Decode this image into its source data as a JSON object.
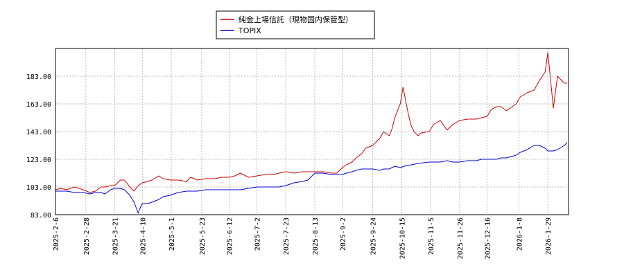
{
  "chart_data": {
    "type": "line",
    "title": "",
    "xlabel": "",
    "ylabel": "",
    "ylim": [
      83.0,
      203.0
    ],
    "yticks": [
      83.0,
      103.0,
      123.0,
      143.0,
      163.0,
      183.0
    ],
    "ytick_labels": [
      "83.00",
      "103.00",
      "123.00",
      "143.00",
      "163.00",
      "183.00"
    ],
    "xlim": [
      "2025-02-06",
      "2026-02-13"
    ],
    "xticks": [
      "2025-2-6",
      "2025-2-28",
      "2025-3-21",
      "2025-4-10",
      "2025-5-1",
      "2025-5-23",
      "2025-6-12",
      "2025-7-2",
      "2025-7-23",
      "2025-8-13",
      "2025-9-2",
      "2025-9-24",
      "2025-10-15",
      "2025-11-5",
      "2025-11-26",
      "2025-12-16",
      "2026-1-8",
      "2026-1-29"
    ],
    "grid": true,
    "legend_position": "top-center",
    "series": [
      {
        "name": "純金上場信託（現物国内保管型）",
        "color": "#cc0000",
        "x": [
          "2025-02-06",
          "2025-02-10",
          "2025-02-14",
          "2025-02-20",
          "2025-02-26",
          "2025-03-03",
          "2025-03-07",
          "2025-03-11",
          "2025-03-14",
          "2025-03-18",
          "2025-03-21",
          "2025-03-25",
          "2025-03-28",
          "2025-04-01",
          "2025-04-04",
          "2025-04-07",
          "2025-04-10",
          "2025-04-14",
          "2025-04-17",
          "2025-04-22",
          "2025-04-25",
          "2025-04-30",
          "2025-05-06",
          "2025-05-12",
          "2025-05-15",
          "2025-05-20",
          "2025-05-26",
          "2025-06-02",
          "2025-06-06",
          "2025-06-12",
          "2025-06-16",
          "2025-06-20",
          "2025-06-26",
          "2025-07-02",
          "2025-07-08",
          "2025-07-14",
          "2025-07-18",
          "2025-07-23",
          "2025-07-29",
          "2025-08-04",
          "2025-08-08",
          "2025-08-13",
          "2025-08-19",
          "2025-08-25",
          "2025-08-29",
          "2025-09-02",
          "2025-09-05",
          "2025-09-09",
          "2025-09-12",
          "2025-09-16",
          "2025-09-19",
          "2025-09-24",
          "2025-09-29",
          "2025-10-02",
          "2025-10-06",
          "2025-10-08",
          "2025-10-10",
          "2025-10-14",
          "2025-10-16",
          "2025-10-17",
          "2025-10-20",
          "2025-10-22",
          "2025-10-24",
          "2025-10-27",
          "2025-10-29",
          "2025-11-04",
          "2025-11-07",
          "2025-11-12",
          "2025-11-17",
          "2025-11-21",
          "2025-11-26",
          "2025-12-02",
          "2025-12-08",
          "2025-12-12",
          "2025-12-16",
          "2025-12-19",
          "2025-12-23",
          "2025-12-26",
          "2025-12-30",
          "2026-01-06",
          "2026-01-09",
          "2026-01-14",
          "2026-01-19",
          "2026-01-23",
          "2026-01-27",
          "2026-01-29",
          "2026-02-02",
          "2026-02-05",
          "2026-02-10",
          "2026-02-12"
        ],
        "values": [
          101,
          102,
          101,
          103,
          101,
          99,
          100,
          103,
          103,
          104,
          104,
          108,
          108,
          103,
          100,
          104,
          106,
          107,
          108,
          111,
          109,
          108,
          108,
          107,
          110,
          108,
          109,
          109,
          110,
          110,
          111,
          113,
          110,
          111,
          112,
          112,
          113,
          114,
          113,
          114,
          114,
          114,
          114,
          113,
          113,
          117,
          119,
          121,
          124,
          127,
          131,
          133,
          138,
          143,
          140,
          145,
          153,
          163,
          175,
          170,
          155,
          147,
          143,
          140,
          142,
          143,
          148,
          151,
          144,
          148,
          151,
          152,
          152,
          153,
          154,
          159,
          161,
          161,
          158,
          163,
          168,
          171,
          173,
          180,
          186,
          200,
          160,
          183,
          178,
          178
        ]
      },
      {
        "name": "TOPIX",
        "color": "#0000cc",
        "x": [
          "2025-02-06",
          "2025-02-10",
          "2025-02-14",
          "2025-02-20",
          "2025-02-26",
          "2025-03-03",
          "2025-03-07",
          "2025-03-11",
          "2025-03-14",
          "2025-03-18",
          "2025-03-21",
          "2025-03-25",
          "2025-03-28",
          "2025-04-01",
          "2025-04-04",
          "2025-04-07",
          "2025-04-08",
          "2025-04-10",
          "2025-04-14",
          "2025-04-17",
          "2025-04-22",
          "2025-04-25",
          "2025-04-30",
          "2025-05-06",
          "2025-05-12",
          "2025-05-15",
          "2025-05-20",
          "2025-05-26",
          "2025-06-02",
          "2025-06-06",
          "2025-06-12",
          "2025-06-16",
          "2025-06-20",
          "2025-06-26",
          "2025-07-02",
          "2025-07-08",
          "2025-07-14",
          "2025-07-18",
          "2025-07-23",
          "2025-07-29",
          "2025-08-04",
          "2025-08-08",
          "2025-08-13",
          "2025-08-19",
          "2025-08-25",
          "2025-08-29",
          "2025-09-02",
          "2025-09-05",
          "2025-09-09",
          "2025-09-12",
          "2025-09-16",
          "2025-09-19",
          "2025-09-24",
          "2025-09-29",
          "2025-10-02",
          "2025-10-06",
          "2025-10-10",
          "2025-10-14",
          "2025-10-17",
          "2025-10-22",
          "2025-10-27",
          "2025-11-04",
          "2025-11-07",
          "2025-11-12",
          "2025-11-17",
          "2025-11-21",
          "2025-11-26",
          "2025-12-02",
          "2025-12-08",
          "2025-12-12",
          "2025-12-16",
          "2025-12-19",
          "2025-12-23",
          "2025-12-26",
          "2025-12-30",
          "2026-01-06",
          "2026-01-09",
          "2026-01-14",
          "2026-01-19",
          "2026-01-23",
          "2026-01-27",
          "2026-01-29",
          "2026-02-02",
          "2026-02-05",
          "2026-02-10",
          "2026-02-12"
        ],
        "values": [
          100,
          100,
          100,
          99,
          99,
          98,
          99,
          99,
          98,
          101,
          102,
          102,
          101,
          97,
          92,
          84,
          87,
          91,
          91,
          92,
          94,
          96,
          97,
          99,
          100,
          100,
          100,
          101,
          101,
          101,
          101,
          101,
          101,
          102,
          103,
          103,
          103,
          103,
          104,
          106,
          107,
          108,
          113,
          113,
          112,
          112,
          112,
          113,
          114,
          115,
          116,
          116,
          116,
          115,
          116,
          116,
          118,
          117,
          118,
          119,
          120,
          121,
          121,
          121,
          122,
          121,
          121,
          122,
          122,
          123,
          123,
          123,
          123,
          124,
          124,
          126,
          128,
          130,
          133,
          133,
          131,
          129,
          129,
          130,
          133,
          135
        ]
      }
    ]
  }
}
